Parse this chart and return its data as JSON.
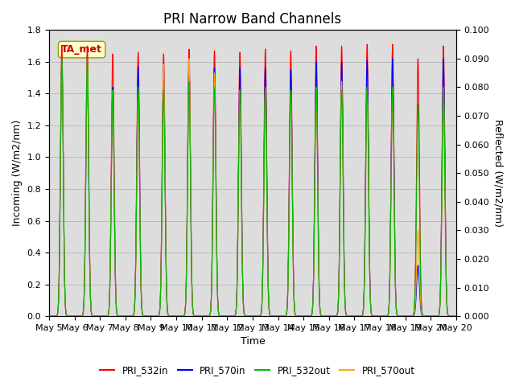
{
  "title": "PRI Narrow Band Channels",
  "xlabel": "Time",
  "ylabel_left": "Incoming (W/m2/nm)",
  "ylabel_right": "Reflected (W/m2/nm)",
  "ylim_left": [
    0,
    1.8
  ],
  "ylim_right": [
    0,
    0.1
  ],
  "background_color": "#ffffff",
  "plot_bg_color": "#dddddd",
  "x_tick_labels": [
    "May 5",
    "May 6",
    "May 7",
    "May 8",
    "May 9",
    "May 10",
    "May 11",
    "May 12",
    "May 13",
    "May 14",
    "May 15",
    "May 16",
    "May 17",
    "May 18",
    "May 19",
    "May 20"
  ],
  "legend_entries": [
    "PRI_532in",
    "PRI_570in",
    "PRI_532out",
    "PRI_570out"
  ],
  "legend_colors": [
    "#ff0000",
    "#0000ff",
    "#00bb00",
    "#ffaa00"
  ],
  "annotation_text": "TA_met",
  "annotation_color": "#cc0000",
  "annotation_bg": "#ffffcc",
  "num_days": 16,
  "peak_heights_532in": [
    1.7,
    1.7,
    1.65,
    1.66,
    1.65,
    1.68,
    1.67,
    1.66,
    1.68,
    1.67,
    1.7,
    1.7,
    1.71,
    1.71,
    1.62,
    1.7
  ],
  "peak_heights_570in": [
    1.6,
    1.53,
    1.44,
    1.57,
    1.56,
    1.6,
    1.56,
    1.56,
    1.56,
    1.55,
    1.6,
    1.6,
    1.61,
    1.62,
    0.32,
    1.62
  ],
  "peak_heights_532out": [
    0.09,
    0.09,
    0.079,
    0.08,
    0.079,
    0.082,
    0.08,
    0.079,
    0.08,
    0.079,
    0.08,
    0.079,
    0.08,
    0.08,
    0.074,
    0.08
  ],
  "peak_heights_570out": [
    0.088,
    0.088,
    0.079,
    0.078,
    0.088,
    0.09,
    0.085,
    0.079,
    0.079,
    0.079,
    0.079,
    0.082,
    0.079,
    0.079,
    0.082,
    0.079
  ],
  "special_570out_day11": 0.082,
  "special_570out_day14": 0.03,
  "grid_color": "#bbbbbb",
  "title_fontsize": 12,
  "label_fontsize": 9,
  "tick_fontsize": 8,
  "figsize": [
    6.4,
    4.8
  ],
  "dpi": 100
}
